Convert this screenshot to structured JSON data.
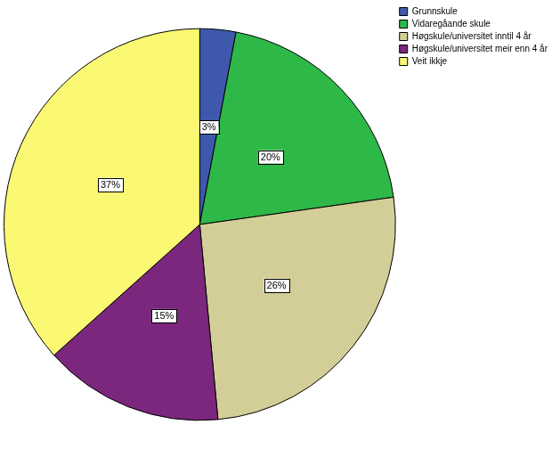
{
  "chart_data": {
    "type": "pie",
    "categories": [
      "Grunnskule",
      "Vidaregåande skule",
      "Høgskule/universitet inntil 4 år",
      "Høgskule/universitet meir enn 4 år",
      "Veit ikkje"
    ],
    "values": [
      3,
      20,
      26,
      15,
      37
    ],
    "value_labels": [
      "3%",
      "20%",
      "26%",
      "15%",
      "37%"
    ],
    "colors": [
      "#3e58ac",
      "#2eb848",
      "#d3ce97",
      "#7b277d",
      "#fbf873"
    ],
    "data_labels": true,
    "legend": "top-right"
  }
}
